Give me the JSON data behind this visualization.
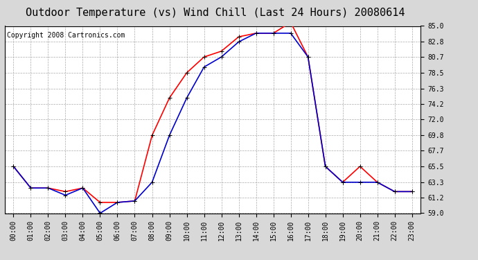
{
  "title": "Outdoor Temperature (vs) Wind Chill (Last 24 Hours) 20080614",
  "copyright": "Copyright 2008 Cartronics.com",
  "hours": [
    "00:00",
    "01:00",
    "02:00",
    "03:00",
    "04:00",
    "05:00",
    "06:00",
    "07:00",
    "08:00",
    "09:00",
    "10:00",
    "11:00",
    "12:00",
    "13:00",
    "14:00",
    "15:00",
    "16:00",
    "17:00",
    "18:00",
    "19:00",
    "20:00",
    "21:00",
    "22:00",
    "23:00"
  ],
  "outdoor_temp": [
    65.5,
    62.5,
    62.5,
    62.0,
    62.5,
    60.5,
    60.5,
    60.7,
    69.8,
    75.0,
    78.5,
    80.7,
    81.5,
    83.5,
    84.0,
    84.0,
    85.5,
    80.7,
    65.5,
    63.3,
    65.5,
    63.3,
    62.0,
    62.0
  ],
  "wind_chill": [
    65.5,
    62.5,
    62.5,
    61.5,
    62.5,
    59.0,
    60.5,
    60.7,
    63.3,
    69.8,
    75.0,
    79.3,
    80.7,
    82.8,
    84.0,
    84.0,
    84.0,
    80.7,
    65.5,
    63.3,
    63.3,
    63.3,
    62.0,
    62.0
  ],
  "outdoor_color": "#ff0000",
  "windchill_color": "#0000cc",
  "fig_bg_color": "#d8d8d8",
  "plot_bg_color": "#ffffff",
  "grid_color": "#aaaaaa",
  "ylim": [
    59.0,
    85.0
  ],
  "yticks": [
    59.0,
    61.2,
    63.3,
    65.5,
    67.7,
    69.8,
    72.0,
    74.2,
    76.3,
    78.5,
    80.7,
    82.8,
    85.0
  ],
  "title_fontsize": 11,
  "copyright_fontsize": 7,
  "tick_fontsize": 7,
  "marker": "+",
  "marker_size": 5,
  "linewidth": 1.2
}
